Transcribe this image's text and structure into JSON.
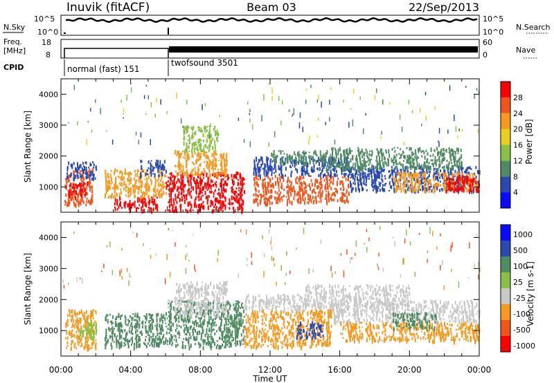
{
  "header": {
    "station": "Inuvik (fitACF)",
    "beam": "Beam 03",
    "date": "22/Sep/2013"
  },
  "top_panel": {
    "left_label": "N.Sky",
    "right_label": "N.Search",
    "left_ticks": [
      "10^5",
      "10^0"
    ],
    "right_ticks": [
      "10^5",
      "10^0"
    ]
  },
  "freq_panel": {
    "left_label_1": "Freq.",
    "left_label_2": "[MHz]",
    "right_label": "Nave",
    "left_ticks": [
      "18",
      "8"
    ],
    "right_ticks": [
      "60",
      "0"
    ]
  },
  "cpid": {
    "label": "CPID",
    "modes": [
      "normal (fast) 151",
      "twofsound 3501"
    ]
  },
  "chart_data": [
    {
      "type": "heatmap",
      "name": "power",
      "ylabel": "Slant Range [km]",
      "xlabel": "Time UT",
      "x_ticks": [
        "00:00",
        "04:00",
        "08:00",
        "12:00",
        "16:00",
        "20:00",
        "00:00"
      ],
      "y_ticks": [
        "1000",
        "2000",
        "3000",
        "4000"
      ],
      "xlim_hours": [
        0,
        24
      ],
      "ylim_km": [
        180,
        4500
      ],
      "colorbar_label": "Power [dB]",
      "colorbar_ticks": [
        "28",
        "24",
        "20",
        "16",
        "12",
        "8",
        "4"
      ],
      "colorbar_colors": [
        "#0a0aff",
        "#2a4ab0",
        "#4f8c62",
        "#88c048",
        "#e8d020",
        "#f59a1e",
        "#f0561c",
        "#ff0000"
      ],
      "bands": [
        {
          "t0": 0.2,
          "t1": 1.8,
          "r0": 450,
          "r1": 1600,
          "c": "#f0561c"
        },
        {
          "t0": 0.4,
          "t1": 1.5,
          "r0": 700,
          "r1": 1200,
          "c": "#ff0000"
        },
        {
          "t0": 0.3,
          "t1": 2.0,
          "r0": 1300,
          "r1": 1850,
          "c": "#2a4ab0"
        },
        {
          "t0": 3.0,
          "t1": 5.5,
          "r0": 250,
          "r1": 700,
          "c": "#ff0000"
        },
        {
          "t0": 2.5,
          "t1": 6.0,
          "r0": 700,
          "r1": 1600,
          "c": "#f59a1e"
        },
        {
          "t0": 4.5,
          "t1": 6.0,
          "r0": 1400,
          "r1": 1900,
          "c": "#2a4ab0"
        },
        {
          "t0": 6.0,
          "t1": 10.5,
          "r0": 250,
          "r1": 1500,
          "c": "#ff0000"
        },
        {
          "t0": 6.5,
          "t1": 9.5,
          "r0": 1400,
          "r1": 2200,
          "c": "#f59a1e"
        },
        {
          "t0": 7.0,
          "t1": 9.0,
          "r0": 2200,
          "r1": 3000,
          "c": "#88c048"
        },
        {
          "t0": 11.0,
          "t1": 16.5,
          "r0": 500,
          "r1": 1400,
          "c": "#f0561c"
        },
        {
          "t0": 11.0,
          "t1": 16.5,
          "r0": 1400,
          "r1": 2000,
          "c": "#2a4ab0"
        },
        {
          "t0": 12.0,
          "t1": 15.5,
          "r0": 1800,
          "r1": 2200,
          "c": "#4f8c62"
        },
        {
          "t0": 16.5,
          "t1": 24.0,
          "r0": 900,
          "r1": 1700,
          "c": "#2a4ab0"
        },
        {
          "t0": 19.0,
          "t1": 24.0,
          "r0": 900,
          "r1": 1500,
          "c": "#f59a1e"
        },
        {
          "t0": 22.0,
          "t1": 24.0,
          "r0": 900,
          "r1": 1400,
          "c": "#ff0000"
        },
        {
          "t0": 15.0,
          "t1": 23.0,
          "r0": 1600,
          "r1": 2300,
          "c": "#4f8c62"
        }
      ]
    },
    {
      "type": "heatmap",
      "name": "velocity",
      "ylabel": "Slant Range [km]",
      "xlabel": "Time UT",
      "x_ticks": [
        "00:00",
        "04:00",
        "08:00",
        "12:00",
        "16:00",
        "20:00",
        "00:00"
      ],
      "y_ticks": [
        "1000",
        "2000",
        "3000",
        "4000"
      ],
      "xlim_hours": [
        0,
        24
      ],
      "ylim_km": [
        180,
        4500
      ],
      "colorbar_label": "Velocity [m s-1]",
      "colorbar_ticks": [
        "1000",
        "500",
        "100",
        "25",
        "-25",
        "-100",
        "-500",
        "-1000"
      ],
      "colorbar_colors": [
        "#ff0000",
        "#f0561c",
        "#f59a1e",
        "#c8c8c8",
        "#88c048",
        "#4f8c62",
        "#2a4ab0",
        "#0a0aff"
      ],
      "bands": [
        {
          "t0": 0.2,
          "t1": 2.0,
          "r0": 450,
          "r1": 1700,
          "c": "#f59a1e"
        },
        {
          "t0": 1.0,
          "t1": 2.0,
          "r0": 800,
          "r1": 1400,
          "c": "#88c048"
        },
        {
          "t0": 2.5,
          "t1": 6.0,
          "r0": 500,
          "r1": 1600,
          "c": "#4f8c62"
        },
        {
          "t0": 6.0,
          "t1": 10.5,
          "r0": 500,
          "r1": 2000,
          "c": "#4f8c62"
        },
        {
          "t0": 6.5,
          "t1": 9.5,
          "r0": 1500,
          "r1": 2600,
          "c": "#c8c8c8"
        },
        {
          "t0": 10.5,
          "t1": 15.5,
          "r0": 500,
          "r1": 1700,
          "c": "#f59a1e"
        },
        {
          "t0": 10.5,
          "t1": 14.0,
          "r0": 1700,
          "r1": 2200,
          "c": "#c8c8c8"
        },
        {
          "t0": 13.5,
          "t1": 15.0,
          "r0": 800,
          "r1": 1300,
          "c": "#2a4ab0"
        },
        {
          "t0": 15.5,
          "t1": 24.0,
          "r0": 1300,
          "r1": 2000,
          "c": "#c8c8c8"
        },
        {
          "t0": 16.0,
          "t1": 24.0,
          "r0": 700,
          "r1": 1300,
          "c": "#f59a1e"
        },
        {
          "t0": 19.0,
          "t1": 21.5,
          "r0": 1100,
          "r1": 1600,
          "c": "#4f8c62"
        },
        {
          "t0": 14.0,
          "t1": 20.0,
          "r0": 1800,
          "r1": 2500,
          "c": "#c8c8c8"
        }
      ]
    }
  ]
}
